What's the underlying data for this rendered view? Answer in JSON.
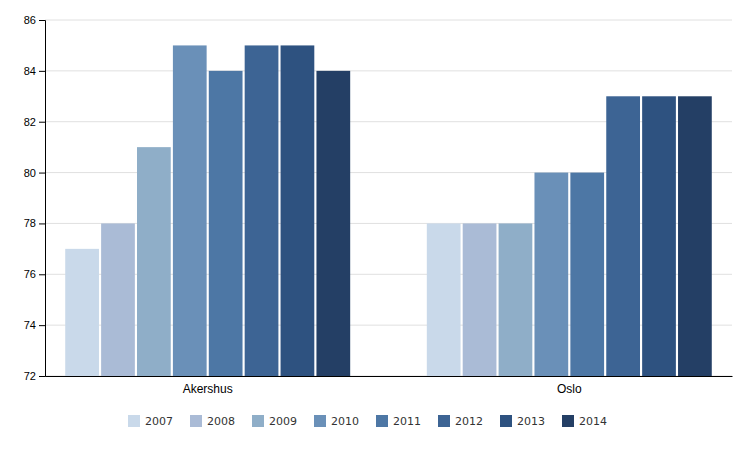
{
  "chart_data": {
    "type": "bar",
    "categories": [
      "Akershus",
      "Oslo"
    ],
    "series": [
      {
        "name": "2007",
        "color": "#c9d9ea",
        "values": [
          77,
          78
        ]
      },
      {
        "name": "2008",
        "color": "#aabbd6",
        "values": [
          78,
          78
        ]
      },
      {
        "name": "2009",
        "color": "#8faec8",
        "values": [
          81,
          78
        ]
      },
      {
        "name": "2010",
        "color": "#6a90b8",
        "values": [
          85,
          80
        ]
      },
      {
        "name": "2011",
        "color": "#4d77a5",
        "values": [
          84,
          80
        ]
      },
      {
        "name": "2012",
        "color": "#3d6494",
        "values": [
          85,
          83
        ]
      },
      {
        "name": "2013",
        "color": "#2e5280",
        "values": [
          85,
          83
        ]
      },
      {
        "name": "2014",
        "color": "#243f65",
        "values": [
          84,
          83
        ]
      }
    ],
    "ylim": [
      72,
      86
    ],
    "yticks": [
      72,
      74,
      76,
      78,
      80,
      82,
      84,
      86
    ],
    "grid": true,
    "legend": "bottom"
  }
}
